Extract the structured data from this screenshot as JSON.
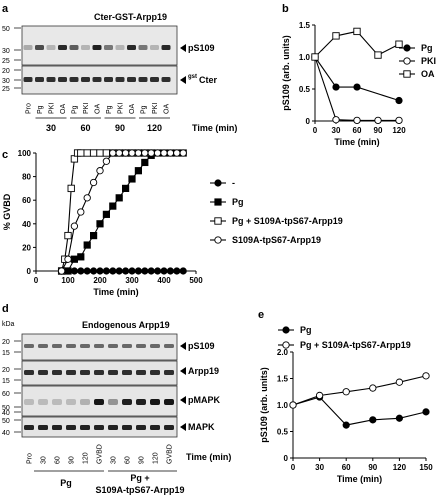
{
  "panels": {
    "a": {
      "letter": "a",
      "title": "Cter-GST-Arpp19",
      "mw_ticks": [
        50,
        30,
        25,
        20,
        30,
        25
      ],
      "lanes": [
        "Pro",
        "Pg",
        "PKI",
        "OA",
        "Pg",
        "PKI",
        "OA",
        "Pg",
        "PKI",
        "OA",
        "Pg",
        "PKI",
        "OA"
      ],
      "time_groups": [
        "30",
        "60",
        "90",
        "120"
      ],
      "time_label": "Time (min)",
      "bands": [
        "pS109",
        "gstCter"
      ],
      "band_label_pS109": "pS109",
      "band_label_gst_sup": "gst",
      "band_label_gst_main": "Cter"
    },
    "d": {
      "letter": "d",
      "title": "Endogenous Arpp19",
      "kda": "kDa",
      "mw_ticks": [
        20,
        15,
        20,
        15,
        60,
        50,
        40,
        50,
        40
      ],
      "lanes": [
        "Pro",
        "30",
        "60",
        "90",
        "120",
        "GVBD",
        "30",
        "60",
        "90",
        "120",
        "GVBD"
      ],
      "time_label": "Time (min)",
      "bands": [
        "pS109",
        "Arpp19",
        "pMAPK",
        "MAPK"
      ],
      "groups": [
        "Pg",
        "Pg +",
        "S109A-tpS67-Arpp19"
      ]
    }
  },
  "chart_data": [
    {
      "panel": "b",
      "type": "line",
      "xlabel": "Time (min)",
      "ylabel": "pS109 (arb. units)",
      "xlim": [
        0,
        120
      ],
      "ylim": [
        0,
        1.5
      ],
      "xticks": [
        0,
        30,
        60,
        90,
        120
      ],
      "yticks": [
        0,
        0.5,
        1.0,
        1.5
      ],
      "ytick_labels": [
        "0",
        "0.5",
        "1.0",
        "1.5"
      ],
      "legend_position": "right",
      "series": [
        {
          "name": "Pg",
          "marker": "filled-circle",
          "x": [
            0,
            30,
            60,
            120
          ],
          "y": [
            1.0,
            0.53,
            0.53,
            0.32
          ]
        },
        {
          "name": "PKI",
          "marker": "open-circle",
          "x": [
            0,
            30,
            60,
            90,
            120
          ],
          "y": [
            1.0,
            0.02,
            0.01,
            0.01,
            0.01
          ]
        },
        {
          "name": "OA",
          "marker": "open-square",
          "x": [
            0,
            30,
            60,
            90,
            120
          ],
          "y": [
            1.0,
            1.33,
            1.4,
            1.03,
            1.2
          ]
        }
      ]
    },
    {
      "panel": "c",
      "type": "line",
      "xlabel": "Time (min)",
      "ylabel": "% GVBD",
      "xlim": [
        0,
        500
      ],
      "ylim": [
        0,
        100
      ],
      "xticks": [
        0,
        100,
        200,
        300,
        400,
        500
      ],
      "yticks": [
        0,
        20,
        40,
        60,
        80,
        100
      ],
      "legend_position": "right",
      "series": [
        {
          "name": "-",
          "marker": "filled-circle",
          "x": [
            80,
            100,
            120,
            140,
            160,
            180,
            200,
            220,
            240,
            260,
            280,
            300,
            320,
            340,
            360,
            380,
            400,
            420,
            440,
            460
          ],
          "y": [
            0,
            0,
            0,
            0,
            0,
            0,
            0,
            0,
            0,
            0,
            0,
            0,
            0,
            0,
            0,
            0,
            0,
            0,
            0,
            0
          ]
        },
        {
          "name": "Pg",
          "marker": "filled-square",
          "x": [
            80,
            100,
            120,
            140,
            160,
            180,
            200,
            220,
            240,
            260,
            280,
            300,
            320,
            340,
            360,
            380,
            400,
            420,
            440,
            460
          ],
          "y": [
            0,
            0,
            10,
            12,
            22,
            30,
            40,
            48,
            55,
            62,
            70,
            78,
            85,
            92,
            98,
            100,
            100,
            100,
            100,
            100
          ]
        },
        {
          "name": "Pg + S109A-tpS67-Arpp19",
          "marker": "open-square",
          "x": [
            80,
            90,
            100,
            110,
            120,
            130,
            140,
            160,
            180,
            200,
            220,
            240,
            260,
            280,
            300,
            320,
            340,
            360
          ],
          "y": [
            0,
            10,
            30,
            70,
            95,
            100,
            100,
            100,
            100,
            100,
            100,
            100,
            100,
            100,
            100,
            100,
            100,
            100
          ]
        },
        {
          "name": "S109A-tpS67-Arpp19",
          "marker": "open-circle",
          "x": [
            80,
            100,
            120,
            140,
            160,
            180,
            200,
            220,
            240,
            260,
            280,
            300,
            320,
            340,
            360,
            380,
            400,
            420,
            440,
            460
          ],
          "y": [
            0,
            10,
            38,
            50,
            62,
            75,
            85,
            93,
            100,
            100,
            100,
            100,
            100,
            100,
            100,
            100,
            100,
            100,
            100,
            100
          ]
        }
      ]
    },
    {
      "panel": "e",
      "type": "line",
      "xlabel": "Time (min)",
      "ylabel": "pS109 (arb. units)",
      "xlim": [
        0,
        150
      ],
      "ylim": [
        0,
        2.0
      ],
      "xticks": [
        0,
        30,
        60,
        90,
        120,
        150
      ],
      "yticks": [
        0,
        0.5,
        1.0,
        1.5,
        2.0
      ],
      "ytick_labels": [
        "0",
        "0.5",
        "1.0",
        "1.5",
        "2.0"
      ],
      "legend_position": "top-left",
      "series": [
        {
          "name": "Pg",
          "marker": "filled-circle",
          "x": [
            0,
            30,
            60,
            90,
            120,
            150
          ],
          "y": [
            1.0,
            1.15,
            0.62,
            0.72,
            0.75,
            0.87
          ]
        },
        {
          "name": "Pg + S109A-tpS67-Arpp19",
          "marker": "open-circle",
          "x": [
            0,
            30,
            60,
            90,
            120,
            150
          ],
          "y": [
            1.0,
            1.18,
            1.25,
            1.32,
            1.43,
            1.55
          ]
        }
      ]
    }
  ]
}
